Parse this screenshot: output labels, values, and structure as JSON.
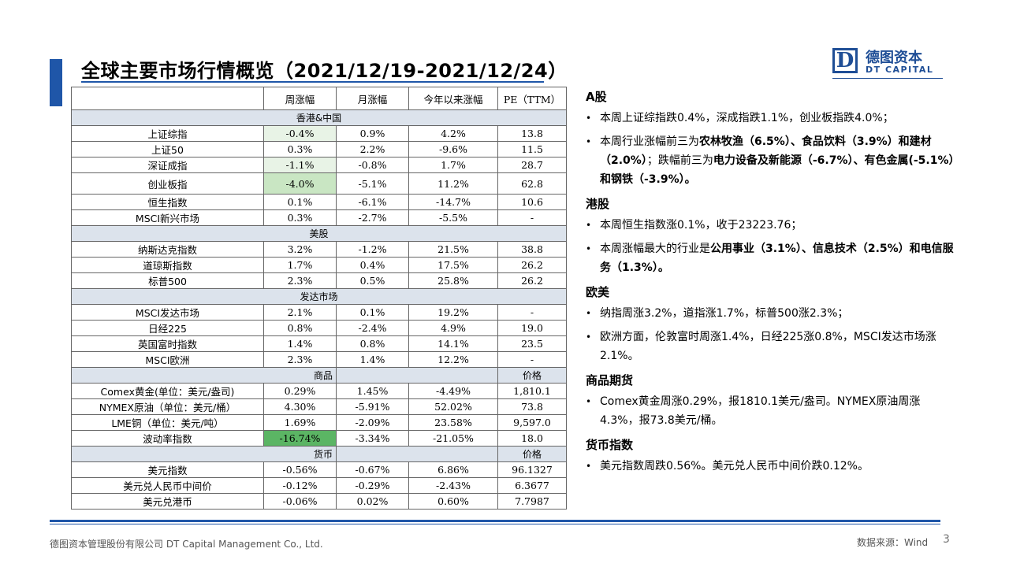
{
  "page": {
    "title": "全球主要市场行情概览（2021/12/19-2021/12/24）",
    "brand_cn": "德图资本",
    "brand_en": "DT CAPITAL",
    "logo_letter": "D",
    "footer_company": "德图资本管理股份有限公司 DT Capital Management Co., Ltd.",
    "footer_source": "数据来源：Wind",
    "page_number": "3",
    "accent_color": "#1f56a8"
  },
  "table": {
    "headers": [
      "",
      "周涨幅",
      "月涨幅",
      "今年以来涨幅",
      "PE（TTM）"
    ],
    "sections": {
      "hk_cn": "香港&中国",
      "us": "美股",
      "developed": "发达市场",
      "commodity": "商品",
      "commodity_price": "价格",
      "currency": "货币",
      "currency_price": "价格"
    },
    "rows": [
      {
        "name": "上证综指",
        "week": "-0.4%",
        "month": "0.9%",
        "ytd": "4.2%",
        "last": "13.8"
      },
      {
        "name": "上证50",
        "week": "0.3%",
        "month": "2.2%",
        "ytd": "-9.6%",
        "last": "11.5"
      },
      {
        "name": "深证成指",
        "week": "-1.1%",
        "month": "-0.8%",
        "ytd": "1.7%",
        "last": "28.7"
      },
      {
        "name": "创业板指",
        "week": "-4.0%",
        "month": "-5.1%",
        "ytd": "11.2%",
        "last": "62.8"
      },
      {
        "name": "恒生指数",
        "week": "0.1%",
        "month": "-6.1%",
        "ytd": "-14.7%",
        "last": "10.6"
      },
      {
        "name": "MSCI新兴市场",
        "week": "0.3%",
        "month": "-2.7%",
        "ytd": "-5.5%",
        "last": "-"
      },
      {
        "name": "纳斯达克指数",
        "week": "3.2%",
        "month": "-1.2%",
        "ytd": "21.5%",
        "last": "38.8"
      },
      {
        "name": "道琼斯指数",
        "week": "1.7%",
        "month": "0.4%",
        "ytd": "17.5%",
        "last": "26.2"
      },
      {
        "name": "标普500",
        "week": "2.3%",
        "month": "0.5%",
        "ytd": "25.8%",
        "last": "26.2"
      },
      {
        "name": "MSCI发达市场",
        "week": "2.1%",
        "month": "0.1%",
        "ytd": "19.2%",
        "last": "-"
      },
      {
        "name": "日经225",
        "week": "0.8%",
        "month": "-2.4%",
        "ytd": "4.9%",
        "last": "19.0"
      },
      {
        "name": "英国富时指数",
        "week": "1.4%",
        "month": "0.8%",
        "ytd": "14.1%",
        "last": "23.5"
      },
      {
        "name": "MSCI欧洲",
        "week": "2.3%",
        "month": "1.4%",
        "ytd": "12.2%",
        "last": "-"
      },
      {
        "name": "Comex黄金(单位：美元/盎司)",
        "week": "0.29%",
        "month": "1.45%",
        "ytd": "-4.49%",
        "last": "1,810.1"
      },
      {
        "name": "NYMEX原油（单位：美元/桶）",
        "week": "4.30%",
        "month": "-5.91%",
        "ytd": "52.02%",
        "last": "73.8"
      },
      {
        "name": "LME铜（单位：美元/吨）",
        "week": "1.69%",
        "month": "-2.09%",
        "ytd": "23.58%",
        "last": "9,597.0"
      },
      {
        "name": "波动率指数",
        "week": "-16.74%",
        "month": "-3.34%",
        "ytd": "-21.05%",
        "last": "18.0"
      },
      {
        "name": "美元指数",
        "week": "-0.56%",
        "month": "-0.67%",
        "ytd": "6.86%",
        "last": "96.1327"
      },
      {
        "name": "美元兑人民币中间价",
        "week": "-0.12%",
        "month": "-0.29%",
        "ytd": "-2.43%",
        "last": "6.3677"
      },
      {
        "name": "美元兑港币",
        "week": "-0.06%",
        "month": "0.02%",
        "ytd": "0.60%",
        "last": "7.7987"
      }
    ]
  },
  "commentary": {
    "a_share": {
      "title": "A股",
      "b1": "本周上证综指跌0.4%，深成指跌1.1%，创业板指跌4.0%；",
      "b2_a": "本周行业涨幅前三为",
      "b2_b": "农林牧渔（6.5%）、食品饮料（3.9%）和建材（2.0%）",
      "b2_c": "；跌幅前三为",
      "b2_d": "电力设备及新能源（-6.7%）、有色金属(-5.1%）和钢铁（-3.9%）",
      "b2_e": "。"
    },
    "hk": {
      "title": "港股",
      "b1": "本周恒生指数涨0.1%，收于23223.76；",
      "b2_a": "本周涨幅最大的行业是",
      "b2_b": "公用事业（3.1%）、信息技术（2.5%）和电信服务（1.3%）",
      "b2_c": "。"
    },
    "us_eu": {
      "title": "欧美",
      "b1": "纳指周涨3.2%，道指涨1.7%，标普500涨2.3%；",
      "b2": "欧洲方面，伦敦富时周涨1.4%，日经225涨0.8%，MSCI发达市场涨2.1%。"
    },
    "commodity": {
      "title": "商品期货",
      "b1": "Comex黄金周涨0.29%，报1810.1美元/盎司。NYMEX原油周涨4.3%，报73.8美元/桶。"
    },
    "currency": {
      "title": "货币指数",
      "b1": "美元指数周跌0.56%。美元兑人民币中间价跌0.12%。"
    }
  }
}
